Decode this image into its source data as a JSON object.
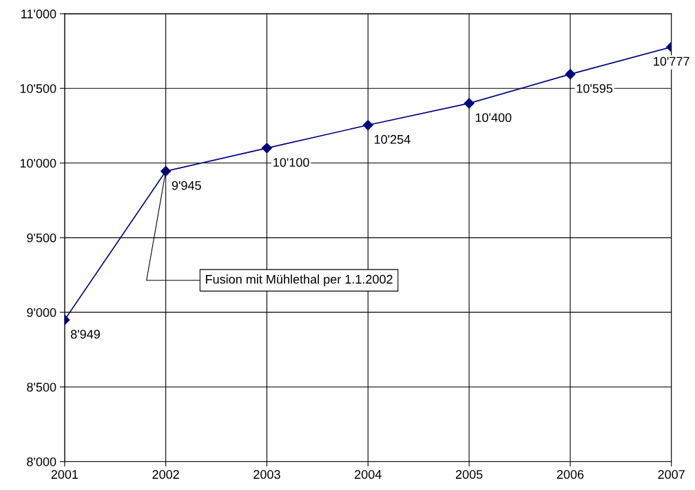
{
  "chart_data": {
    "type": "line",
    "x": [
      2001,
      2002,
      2003,
      2004,
      2005,
      2006,
      2007
    ],
    "series": [
      {
        "color": "#000080",
        "values": [
          8949,
          9945,
          10100,
          10254,
          10400,
          10595,
          10777
        ],
        "value_labels": [
          "8'949",
          "9'945",
          "10'100",
          "10'254",
          "10'400",
          "10'595",
          "10'777"
        ]
      }
    ],
    "xlim": [
      2001,
      2007
    ],
    "xticks": [
      2001,
      2002,
      2003,
      2004,
      2005,
      2006,
      2007
    ],
    "ylim": [
      8000,
      11000
    ],
    "yticks": [
      {
        "value": 8000,
        "label": "8'000"
      },
      {
        "value": 8500,
        "label": "8'500"
      },
      {
        "value": 9000,
        "label": "9'000"
      },
      {
        "value": 9500,
        "label": "9'500"
      },
      {
        "value": 10000,
        "label": "10'000"
      },
      {
        "value": 10500,
        "label": "10'500"
      },
      {
        "value": 11000,
        "label": "11'000"
      }
    ],
    "grid": true,
    "marker": "diamond",
    "line_style": "solid",
    "annotations": [
      {
        "text": "Fusion mit Mühlethal per 1.1.2002",
        "x": 2002,
        "y": 9945
      }
    ]
  }
}
